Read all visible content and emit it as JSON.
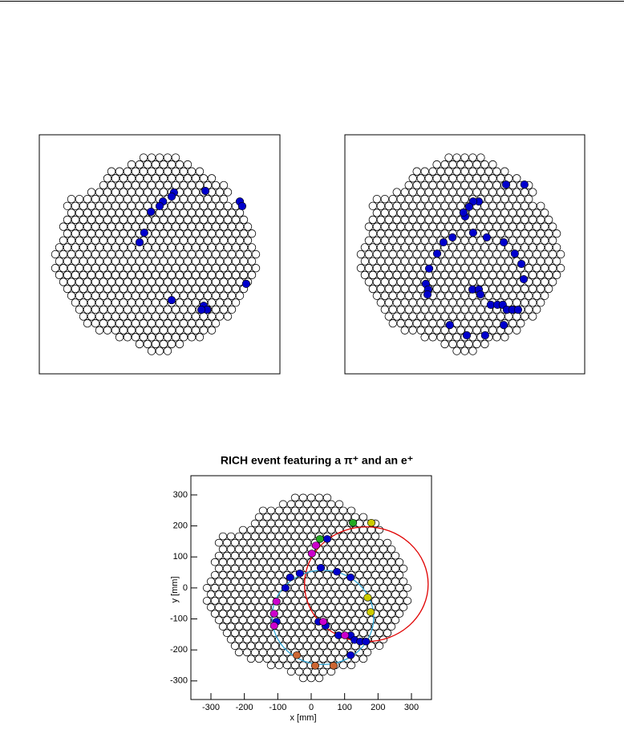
{
  "chart_data": [
    {
      "type": "scatter",
      "xlim": [
        -360,
        360
      ],
      "ylim": [
        -360,
        360
      ],
      "series": [
        {
          "color": "#0000cc",
          "x": [
            43,
            36,
            10,
            0,
            -26,
            137,
            240,
            247,
            259,
            -46,
            -60,
            36,
            132,
            142,
            125
          ],
          "y": [
            186,
            174,
            159,
            145,
            128,
            191,
            159,
            145,
            -89,
            65,
            36,
            -138,
            -155,
            -167,
            -167
          ]
        }
      ]
    },
    {
      "type": "scatter",
      "xlim": [
        -360,
        360
      ],
      "ylim": [
        -360,
        360
      ],
      "series": [
        {
          "color": "#0000cc",
          "x": [
            124,
            179,
            42,
            25,
            13,
            1,
            -4,
            25,
            -37,
            -64,
            66,
            117,
            -83,
            150,
            170,
            -107,
            177,
            -117,
            -110,
            -112,
            23,
            42,
            47,
            78,
            98,
            114,
            126,
            143,
            160,
            117,
            -45,
            6,
            61
          ],
          "y": [
            210,
            210,
            159,
            159,
            143,
            114,
            126,
            65,
            51,
            36,
            51,
            36,
            2,
            2,
            -29,
            -43,
            -75,
            -89,
            -106,
            -121,
            -106,
            -106,
            -121,
            -152,
            -152,
            -152,
            -167,
            -167,
            -167,
            -213,
            -213,
            -244,
            -244
          ]
        }
      ]
    },
    {
      "type": "scatter",
      "title": "RICH event featuring a π⁺ and an e⁺",
      "x_label": "x [mm]",
      "y_label": "y [mm]",
      "xlim": [
        -360,
        360
      ],
      "ylim": [
        -360,
        362
      ],
      "xticks": [
        -300,
        -200,
        -100,
        0,
        100,
        200,
        300
      ],
      "yticks": [
        -300,
        -200,
        -100,
        0,
        100,
        200,
        300
      ],
      "rings": [
        {
          "cx": 165,
          "cy": 12,
          "r": 185,
          "color": "#e00000"
        },
        {
          "cx": 35,
          "cy": -95,
          "r": 152,
          "color": "#33a8d8"
        }
      ],
      "series": [
        {
          "color": "#0000cc",
          "x": [
            48,
            -34,
            -63,
            29,
            77,
            118,
            -77,
            -104,
            22,
            43,
            82,
            118,
            130,
            147,
            164,
            118
          ],
          "y": [
            158,
            47,
            34,
            65,
            52,
            34,
            0,
            -109,
            -109,
            -122,
            -153,
            -153,
            -168,
            -173,
            -173,
            -217
          ]
        },
        {
          "color": "#22aa22",
          "x": [
            125,
            26
          ],
          "y": [
            210,
            158
          ]
        },
        {
          "color": "#cccc00",
          "x": [
            180,
            169,
            178
          ],
          "y": [
            210,
            -31,
            -78
          ]
        },
        {
          "color": "#cc00cc",
          "x": [
            14,
            2,
            -104,
            -111,
            -111,
            36,
            101
          ],
          "y": [
            137,
            111,
            -44,
            -83,
            -122,
            -109,
            -153
          ]
        },
        {
          "color": "#cc6633",
          "x": [
            -43,
            12,
            67
          ],
          "y": [
            -217,
            -251,
            -251
          ]
        }
      ]
    }
  ]
}
